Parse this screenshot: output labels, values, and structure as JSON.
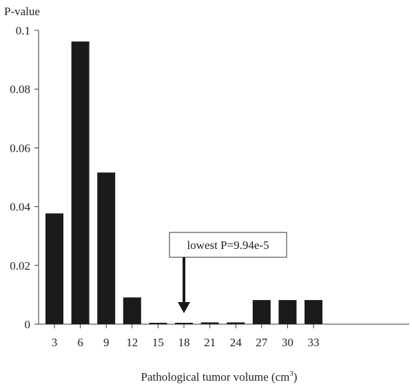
{
  "chart_data": {
    "type": "bar",
    "ylabel": "P-value",
    "xlabel": "Pathological tumor volume (cm",
    "xlabel_superscript": "3",
    "xlabel_suffix": ")",
    "categories": [
      "3",
      "6",
      "9",
      "12",
      "15",
      "18",
      "21",
      "24",
      "27",
      "30",
      "33"
    ],
    "values": [
      0.0377,
      0.0962,
      0.0516,
      0.0091,
      0.0004,
      0.0001,
      0.0006,
      0.0006,
      0.0082,
      0.0082,
      0.0082
    ],
    "ylim": [
      0,
      0.1
    ],
    "yticks": [
      "0",
      "0.02",
      "0.04",
      "0.06",
      "0.08",
      "0.1"
    ],
    "ytick_values": [
      0,
      0.02,
      0.04,
      0.06,
      0.08,
      0.1
    ],
    "grid": false,
    "bar_color": "#1a1a1a",
    "annotation": {
      "text": "lowest  P=9.94e-5",
      "category": "18"
    }
  }
}
